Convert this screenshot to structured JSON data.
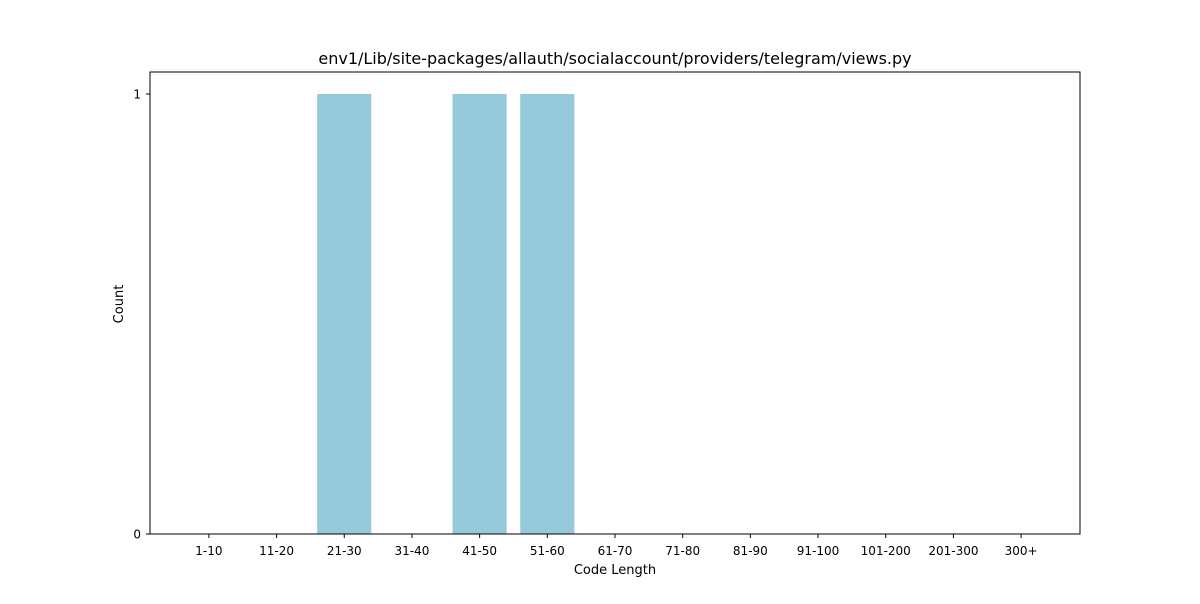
{
  "chart_data": {
    "type": "bar",
    "title": "env1/Lib/site-packages/allauth/socialaccount/providers/telegram/views.py",
    "xlabel": "Code Length",
    "ylabel": "Count",
    "categories": [
      "1-10",
      "11-20",
      "21-30",
      "31-40",
      "41-50",
      "51-60",
      "61-70",
      "71-80",
      "81-90",
      "91-100",
      "101-200",
      "201-300",
      "300+"
    ],
    "values": [
      0,
      0,
      1,
      0,
      1,
      1,
      0,
      0,
      0,
      0,
      0,
      0,
      0
    ],
    "yticks": [
      0,
      1
    ],
    "ylim": [
      0,
      1.05
    ],
    "grid": false,
    "legend": "none",
    "bar_color": "#96c9dc"
  }
}
